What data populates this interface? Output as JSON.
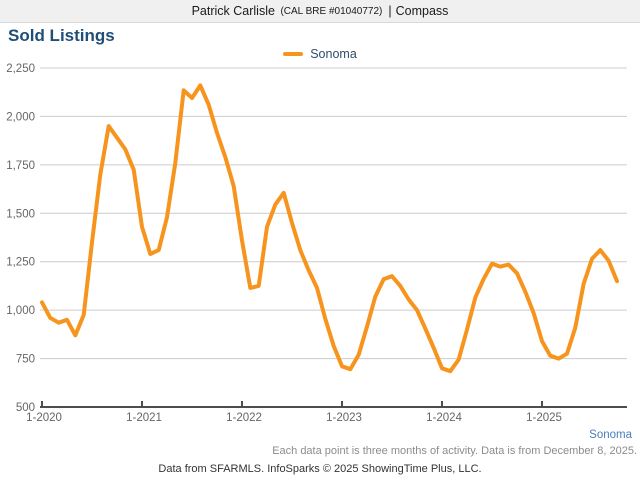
{
  "header": {
    "name": "Patrick Carlisle",
    "license": "(CAL BRE #01040772)",
    "divider": "|",
    "brand": "Compass"
  },
  "page_title": "Sold Listings",
  "legend": {
    "label": "Sonoma"
  },
  "footer": {
    "region_link": "Sonoma",
    "note": "Each data point is three months of activity. Data is from December 8, 2025.",
    "attribution": "Data from SFARMLS. InfoSparks © 2025 ShowingTime Plus, LLC."
  },
  "colors": {
    "accent_orange": "#f7941e",
    "title_blue": "#1f4e79",
    "link_blue": "#4a7ebb",
    "axis_text": "#666666",
    "axis_line": "#4d4d4d",
    "grid": "#cccccc",
    "topbar_bg": "#f0f0f0"
  },
  "chart_data": {
    "type": "line",
    "title": "Sold Listings",
    "x_monthly_from": "1-2020",
    "x_monthly_to": "10-2025",
    "x_tick_labels": [
      "1-2020",
      "1-2021",
      "1-2022",
      "1-2023",
      "1-2024",
      "1-2025"
    ],
    "y_tick_values": [
      500,
      750,
      1000,
      1250,
      1500,
      1750,
      2000,
      2250
    ],
    "ylim": [
      500,
      2250
    ],
    "grid": "horizontal",
    "legend_position": "top-center",
    "note": "Each data point is three months of activity; values estimated from pixel positions",
    "series": [
      {
        "name": "Sonoma",
        "color": "#f7941e",
        "values": [
          1040,
          960,
          935,
          950,
          870,
          975,
          1350,
          1700,
          1950,
          1890,
          1830,
          1725,
          1430,
          1290,
          1310,
          1480,
          1760,
          2135,
          2095,
          2160,
          2060,
          1915,
          1790,
          1640,
          1360,
          1115,
          1125,
          1430,
          1545,
          1605,
          1450,
          1310,
          1205,
          1115,
          955,
          815,
          710,
          695,
          770,
          915,
          1070,
          1160,
          1175,
          1125,
          1055,
          1000,
          905,
          805,
          700,
          685,
          745,
          900,
          1065,
          1160,
          1240,
          1225,
          1235,
          1190,
          1095,
          985,
          840,
          765,
          750,
          775,
          910,
          1135,
          1265,
          1310,
          1255,
          1150
        ]
      }
    ]
  }
}
